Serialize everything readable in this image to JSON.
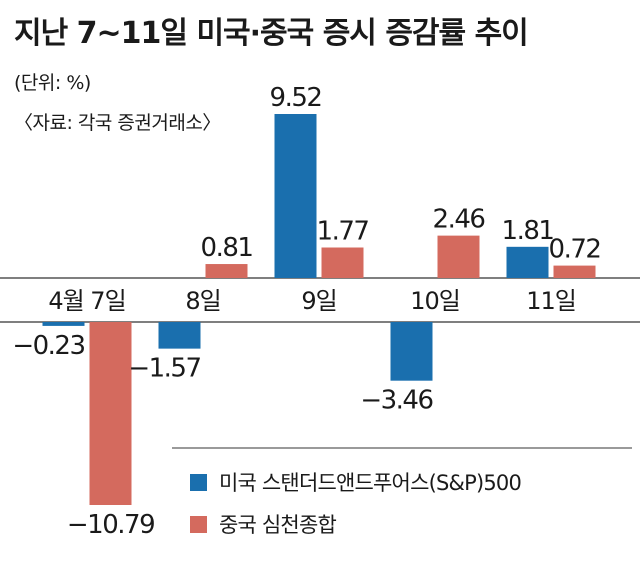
{
  "chart_data": {
    "type": "bar",
    "title": "지난 7~11일 미국·중국 증시 증감률 추이",
    "unit_note": "(단위: %)",
    "source_note": "〈자료: 각국 증권거래소〉",
    "categories": [
      "4월 7일",
      "8일",
      "9일",
      "10일",
      "11일"
    ],
    "series": [
      {
        "name": "미국 스탠더드앤드푸어스(S&P)500",
        "color": "#1a6fae",
        "values": [
          -0.23,
          -1.57,
          9.52,
          -3.46,
          1.81
        ],
        "labels": [
          "−0.23",
          "−1.57",
          "9.52",
          "−3.46",
          "1.81"
        ]
      },
      {
        "name": "중국 심천종합",
        "color": "#d46a5e",
        "values": [
          -10.79,
          0.81,
          1.77,
          2.46,
          0.72
        ],
        "labels": [
          "−10.79",
          "0.81",
          "1.77",
          "2.46",
          "0.72"
        ]
      }
    ],
    "ylim": [
      -10.79,
      9.52
    ],
    "grid": false,
    "legend": "bottom-right"
  }
}
